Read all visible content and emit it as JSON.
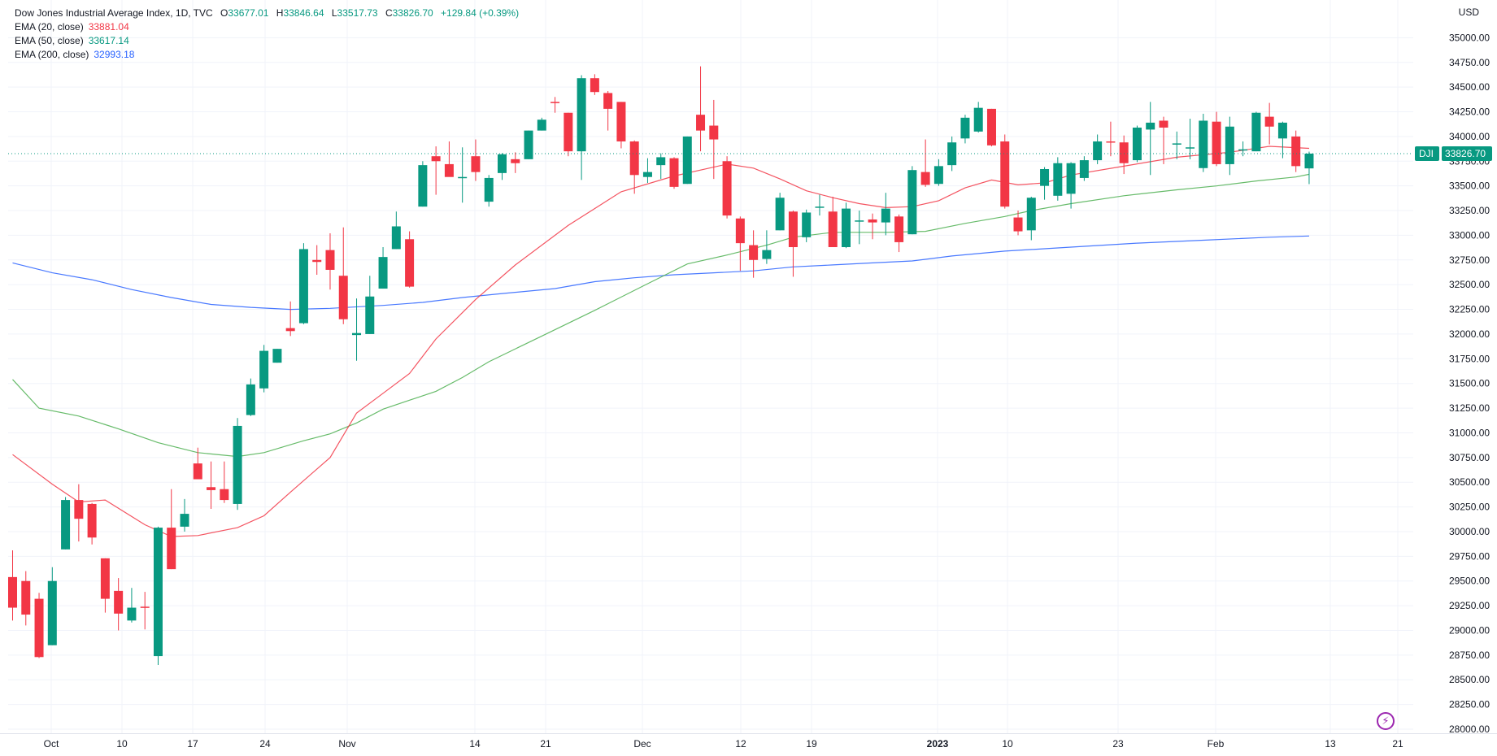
{
  "legend": {
    "title": "Dow Jones Industrial Average Index, 1D, TVC",
    "o_label": "O",
    "o_value": "33677.01",
    "h_label": "H",
    "h_value": "33846.64",
    "l_label": "L",
    "l_value": "33517.73",
    "c_label": "C",
    "c_value": "33826.70",
    "change": "+129.84 (+0.39%)",
    "ema20_label": "EMA (20, close)",
    "ema20_value": "33881.04",
    "ema50_label": "EMA (50, close)",
    "ema50_value": "33617.14",
    "ema200_label": "EMA (200, close)",
    "ema200_value": "32993.18"
  },
  "currency": "USD",
  "colors": {
    "up": "#089981",
    "down": "#f23645",
    "ema20": "#f23645",
    "ema50": "#4caf50",
    "ema200": "#2962ff",
    "grid": "#f0f3fa"
  },
  "icons": {
    "bolt": "lightning-icon"
  },
  "chart_data": {
    "type": "candlestick",
    "title": "Dow Jones Industrial Average Index, 1D, TVC",
    "ylabel": "USD",
    "ylim": [
      28000,
      35250
    ],
    "yticks": [
      28000,
      28250,
      28500,
      28750,
      29000,
      29250,
      29500,
      29750,
      30000,
      30250,
      30500,
      30750,
      31000,
      31250,
      31500,
      31750,
      32000,
      32250,
      32500,
      32750,
      33000,
      33250,
      33500,
      33750,
      34000,
      34250,
      34500,
      34750,
      35000
    ],
    "x_ticks": [
      "Oct",
      "10",
      "17",
      "24",
      "Nov",
      "14",
      "21",
      "Dec",
      "12",
      "19",
      "2023",
      "10",
      "23",
      "Feb",
      "13",
      "21"
    ],
    "x_tick_bold": [
      "2023"
    ],
    "last_price_label": "DJI",
    "last_price": "33826.70",
    "candles": [
      {
        "o": 29540,
        "h": 29810,
        "l": 29100,
        "c": 29230
      },
      {
        "o": 29500,
        "h": 29600,
        "l": 29050,
        "c": 29160
      },
      {
        "o": 29320,
        "h": 29380,
        "l": 28720,
        "c": 28730
      },
      {
        "o": 28850,
        "h": 29640,
        "l": 28850,
        "c": 29500
      },
      {
        "o": 29820,
        "h": 30350,
        "l": 29820,
        "c": 30320
      },
      {
        "o": 30320,
        "h": 30480,
        "l": 29900,
        "c": 30130
      },
      {
        "o": 30280,
        "h": 30290,
        "l": 29870,
        "c": 29940
      },
      {
        "o": 29730,
        "h": 29730,
        "l": 29180,
        "c": 29320
      },
      {
        "o": 29400,
        "h": 29530,
        "l": 29000,
        "c": 29170
      },
      {
        "o": 29100,
        "h": 29430,
        "l": 29080,
        "c": 29230
      },
      {
        "o": 29240,
        "h": 29390,
        "l": 29010,
        "c": 29230
      },
      {
        "o": 28740,
        "h": 30050,
        "l": 28650,
        "c": 30040
      },
      {
        "o": 30040,
        "h": 30430,
        "l": 29620,
        "c": 29620
      },
      {
        "o": 30050,
        "h": 30330,
        "l": 30000,
        "c": 30180
      },
      {
        "o": 30690,
        "h": 30850,
        "l": 30550,
        "c": 30530
      },
      {
        "o": 30450,
        "h": 30710,
        "l": 30230,
        "c": 30420
      },
      {
        "o": 30430,
        "h": 30710,
        "l": 30290,
        "c": 30320
      },
      {
        "o": 30280,
        "h": 31150,
        "l": 30220,
        "c": 31070
      },
      {
        "o": 31180,
        "h": 31550,
        "l": 31170,
        "c": 31490
      },
      {
        "o": 31450,
        "h": 31890,
        "l": 31410,
        "c": 31830
      },
      {
        "o": 31710,
        "h": 31850,
        "l": 31710,
        "c": 31850
      },
      {
        "o": 32060,
        "h": 32330,
        "l": 31980,
        "c": 32030
      },
      {
        "o": 32110,
        "h": 32920,
        "l": 32100,
        "c": 32860
      },
      {
        "o": 32750,
        "h": 32900,
        "l": 32600,
        "c": 32730
      },
      {
        "o": 32850,
        "h": 33020,
        "l": 32450,
        "c": 32650
      },
      {
        "o": 32590,
        "h": 33080,
        "l": 32100,
        "c": 32150
      },
      {
        "o": 31990,
        "h": 32360,
        "l": 31730,
        "c": 32010
      },
      {
        "o": 32000,
        "h": 32590,
        "l": 32000,
        "c": 32380
      },
      {
        "o": 32460,
        "h": 32880,
        "l": 32460,
        "c": 32780
      },
      {
        "o": 32860,
        "h": 33240,
        "l": 32860,
        "c": 33090
      },
      {
        "o": 32960,
        "h": 33040,
        "l": 32470,
        "c": 32480
      },
      {
        "o": 33290,
        "h": 33750,
        "l": 33290,
        "c": 33710
      },
      {
        "o": 33800,
        "h": 33900,
        "l": 33410,
        "c": 33750
      },
      {
        "o": 33720,
        "h": 33950,
        "l": 33610,
        "c": 33590
      },
      {
        "o": 33590,
        "h": 33890,
        "l": 33330,
        "c": 33590
      },
      {
        "o": 33800,
        "h": 33970,
        "l": 33550,
        "c": 33640
      },
      {
        "o": 33340,
        "h": 33610,
        "l": 33290,
        "c": 33580
      },
      {
        "o": 33630,
        "h": 33830,
        "l": 33560,
        "c": 33820
      },
      {
        "o": 33770,
        "h": 33840,
        "l": 33630,
        "c": 33730
      },
      {
        "o": 33770,
        "h": 34060,
        "l": 33770,
        "c": 34060
      },
      {
        "o": 34060,
        "h": 34190,
        "l": 34060,
        "c": 34170
      },
      {
        "o": 34350,
        "h": 34400,
        "l": 34240,
        "c": 34340
      },
      {
        "o": 34240,
        "h": 34240,
        "l": 33800,
        "c": 33850
      },
      {
        "o": 33850,
        "h": 34620,
        "l": 33560,
        "c": 34590
      },
      {
        "o": 34590,
        "h": 34630,
        "l": 34420,
        "c": 34450
      },
      {
        "o": 34440,
        "h": 34460,
        "l": 34060,
        "c": 34280
      },
      {
        "o": 34350,
        "h": 34350,
        "l": 33880,
        "c": 33950
      },
      {
        "o": 33950,
        "h": 33960,
        "l": 33420,
        "c": 33610
      },
      {
        "o": 33590,
        "h": 33780,
        "l": 33530,
        "c": 33640
      },
      {
        "o": 33710,
        "h": 33830,
        "l": 33570,
        "c": 33790
      },
      {
        "o": 33780,
        "h": 33790,
        "l": 33470,
        "c": 33490
      },
      {
        "o": 33520,
        "h": 34000,
        "l": 33520,
        "c": 34000
      },
      {
        "o": 34220,
        "h": 34710,
        "l": 33850,
        "c": 34060
      },
      {
        "o": 34110,
        "h": 34370,
        "l": 33570,
        "c": 33970
      },
      {
        "o": 33750,
        "h": 33800,
        "l": 33170,
        "c": 33200
      },
      {
        "o": 33170,
        "h": 33190,
        "l": 32640,
        "c": 32920
      },
      {
        "o": 32900,
        "h": 33050,
        "l": 32570,
        "c": 32750
      },
      {
        "o": 32760,
        "h": 33050,
        "l": 32710,
        "c": 32850
      },
      {
        "o": 33050,
        "h": 33430,
        "l": 33050,
        "c": 33380
      },
      {
        "o": 33240,
        "h": 33250,
        "l": 32580,
        "c": 32880
      },
      {
        "o": 32980,
        "h": 33260,
        "l": 32930,
        "c": 33230
      },
      {
        "o": 33280,
        "h": 33410,
        "l": 33200,
        "c": 33290
      },
      {
        "o": 33240,
        "h": 33390,
        "l": 32920,
        "c": 32880
      },
      {
        "o": 32880,
        "h": 33330,
        "l": 32870,
        "c": 33270
      },
      {
        "o": 33150,
        "h": 33250,
        "l": 32910,
        "c": 33150
      },
      {
        "o": 33160,
        "h": 33220,
        "l": 32960,
        "c": 33130
      },
      {
        "o": 33130,
        "h": 33430,
        "l": 33000,
        "c": 33270
      },
      {
        "o": 33190,
        "h": 33210,
        "l": 32830,
        "c": 32930
      },
      {
        "o": 33010,
        "h": 33700,
        "l": 33010,
        "c": 33660
      },
      {
        "o": 33640,
        "h": 33970,
        "l": 33490,
        "c": 33510
      },
      {
        "o": 33520,
        "h": 33770,
        "l": 33500,
        "c": 33700
      },
      {
        "o": 33710,
        "h": 34000,
        "l": 33650,
        "c": 33940
      },
      {
        "o": 33980,
        "h": 34220,
        "l": 33930,
        "c": 34190
      },
      {
        "o": 34050,
        "h": 34350,
        "l": 34040,
        "c": 34290
      },
      {
        "o": 34280,
        "h": 34280,
        "l": 33900,
        "c": 33910
      },
      {
        "o": 33950,
        "h": 34020,
        "l": 33270,
        "c": 33290
      },
      {
        "o": 33180,
        "h": 33250,
        "l": 33000,
        "c": 33040
      },
      {
        "o": 33050,
        "h": 33390,
        "l": 32950,
        "c": 33380
      },
      {
        "o": 33500,
        "h": 33690,
        "l": 33360,
        "c": 33670
      },
      {
        "o": 33400,
        "h": 33790,
        "l": 33350,
        "c": 33730
      },
      {
        "o": 33420,
        "h": 33740,
        "l": 33270,
        "c": 33730
      },
      {
        "o": 33580,
        "h": 33800,
        "l": 33550,
        "c": 33760
      },
      {
        "o": 33760,
        "h": 34020,
        "l": 33720,
        "c": 33950
      },
      {
        "o": 33950,
        "h": 34150,
        "l": 33800,
        "c": 33940
      },
      {
        "o": 33940,
        "h": 34010,
        "l": 33620,
        "c": 33730
      },
      {
        "o": 33760,
        "h": 34110,
        "l": 33740,
        "c": 34090
      },
      {
        "o": 34070,
        "h": 34350,
        "l": 33610,
        "c": 34140
      },
      {
        "o": 34160,
        "h": 34200,
        "l": 33720,
        "c": 34090
      },
      {
        "o": 33930,
        "h": 34050,
        "l": 33770,
        "c": 33930
      },
      {
        "o": 33880,
        "h": 34180,
        "l": 33770,
        "c": 33890
      },
      {
        "o": 33680,
        "h": 34230,
        "l": 33640,
        "c": 34160
      },
      {
        "o": 34150,
        "h": 34250,
        "l": 33700,
        "c": 33720
      },
      {
        "o": 33720,
        "h": 34200,
        "l": 33610,
        "c": 34100
      },
      {
        "o": 33870,
        "h": 33950,
        "l": 33800,
        "c": 33870
      },
      {
        "o": 33850,
        "h": 34250,
        "l": 33850,
        "c": 34240
      },
      {
        "o": 34200,
        "h": 34340,
        "l": 33920,
        "c": 34100
      },
      {
        "o": 33980,
        "h": 34150,
        "l": 33780,
        "c": 34140
      },
      {
        "o": 34000,
        "h": 34060,
        "l": 33640,
        "c": 33700
      },
      {
        "o": 33677.01,
        "h": 33846.64,
        "l": 33517.73,
        "c": 33826.7
      }
    ],
    "ema20": [
      [
        0,
        30780
      ],
      [
        3,
        30480
      ],
      [
        5,
        30300
      ],
      [
        7,
        30320
      ],
      [
        10,
        30070
      ],
      [
        12,
        29950
      ],
      [
        14,
        29960
      ],
      [
        17,
        30040
      ],
      [
        19,
        30160
      ],
      [
        21,
        30400
      ],
      [
        24,
        30750
      ],
      [
        26,
        31200
      ],
      [
        28,
        31400
      ],
      [
        30,
        31600
      ],
      [
        32,
        31950
      ],
      [
        35,
        32350
      ],
      [
        38,
        32700
      ],
      [
        42,
        33100
      ],
      [
        46,
        33440
      ],
      [
        50,
        33600
      ],
      [
        54,
        33720
      ],
      [
        56,
        33680
      ],
      [
        58,
        33570
      ],
      [
        60,
        33450
      ],
      [
        62,
        33380
      ],
      [
        64,
        33320
      ],
      [
        66,
        33280
      ],
      [
        68,
        33290
      ],
      [
        70,
        33350
      ],
      [
        72,
        33480
      ],
      [
        74,
        33560
      ],
      [
        76,
        33510
      ],
      [
        78,
        33530
      ],
      [
        80,
        33610
      ],
      [
        84,
        33700
      ],
      [
        88,
        33790
      ],
      [
        92,
        33840
      ],
      [
        95,
        33900
      ],
      [
        98,
        33880
      ]
    ],
    "ema50": [
      [
        0,
        31540
      ],
      [
        2,
        31250
      ],
      [
        5,
        31170
      ],
      [
        8,
        31040
      ],
      [
        11,
        30900
      ],
      [
        14,
        30800
      ],
      [
        17,
        30760
      ],
      [
        19,
        30800
      ],
      [
        22,
        30920
      ],
      [
        24,
        30990
      ],
      [
        26,
        31100
      ],
      [
        28,
        31240
      ],
      [
        30,
        31330
      ],
      [
        32,
        31420
      ],
      [
        34,
        31560
      ],
      [
        36,
        31720
      ],
      [
        40,
        31980
      ],
      [
        44,
        32240
      ],
      [
        48,
        32510
      ],
      [
        51,
        32710
      ],
      [
        54,
        32800
      ],
      [
        57,
        32900
      ],
      [
        59,
        32980
      ],
      [
        62,
        33030
      ],
      [
        66,
        33030
      ],
      [
        69,
        33040
      ],
      [
        72,
        33120
      ],
      [
        75,
        33190
      ],
      [
        77,
        33250
      ],
      [
        80,
        33320
      ],
      [
        84,
        33400
      ],
      [
        88,
        33460
      ],
      [
        91,
        33500
      ],
      [
        94,
        33550
      ],
      [
        97,
        33590
      ],
      [
        98,
        33617
      ]
    ],
    "ema200": [
      [
        0,
        32720
      ],
      [
        3,
        32620
      ],
      [
        6,
        32550
      ],
      [
        9,
        32450
      ],
      [
        12,
        32370
      ],
      [
        15,
        32300
      ],
      [
        18,
        32270
      ],
      [
        21,
        32250
      ],
      [
        24,
        32260
      ],
      [
        28,
        32290
      ],
      [
        31,
        32320
      ],
      [
        34,
        32370
      ],
      [
        37,
        32410
      ],
      [
        41,
        32460
      ],
      [
        44,
        32530
      ],
      [
        47,
        32570
      ],
      [
        50,
        32600
      ],
      [
        53,
        32620
      ],
      [
        56,
        32640
      ],
      [
        59,
        32680
      ],
      [
        62,
        32700
      ],
      [
        65,
        32720
      ],
      [
        68,
        32740
      ],
      [
        71,
        32790
      ],
      [
        75,
        32840
      ],
      [
        80,
        32880
      ],
      [
        85,
        32920
      ],
      [
        90,
        32950
      ],
      [
        95,
        32980
      ],
      [
        98,
        32993
      ]
    ]
  }
}
